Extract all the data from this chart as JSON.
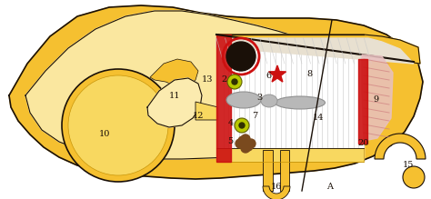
{
  "bg_color": "#ffffff",
  "yellow": "#f5c030",
  "yellow_light": "#f8d860",
  "yellow_dark": "#c8960a",
  "black": "#1a1008",
  "red": "#cc1010",
  "red_bright": "#e02020",
  "gray": "#b8b8b8",
  "gray_dark": "#909090",
  "yg": "#b8c800",
  "brown": "#7a4a1e",
  "pink": "#e8c0c0",
  "white": "#ffffff",
  "stripe_col": "#c8c8c8",
  "label_fs": 7
}
